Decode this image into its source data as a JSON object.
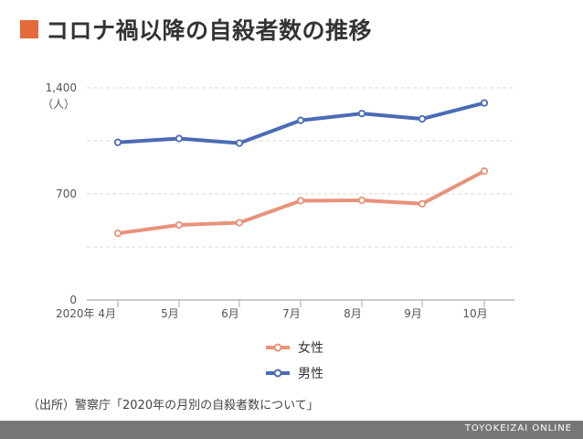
{
  "title": "コロナ禍以降の自殺者数の推移",
  "source": "（出所）警察庁「2020年の月別の自殺者数について」",
  "footer": "TOYOKEIZAI ONLINE",
  "colors": {
    "accent": "#e36a3c",
    "female": "#e8927a",
    "male": "#4a6bb5"
  },
  "chart_data": {
    "type": "line",
    "categories": [
      "2020年 4月",
      "5月",
      "6月",
      "7月",
      "8月",
      "9月",
      "10月"
    ],
    "y_tick_labels": [
      "1,400",
      "700",
      "0"
    ],
    "y_unit": "（人）",
    "ylim": [
      0,
      1400
    ],
    "y_ticks": [
      0,
      700,
      1400
    ],
    "grid": true,
    "legend_position": "bottom",
    "series": [
      {
        "name": "女性",
        "color": "#e8927a",
        "values": [
          440,
          495,
          510,
          655,
          658,
          635,
          850
        ]
      },
      {
        "name": "男性",
        "color": "#4a6bb5",
        "values": [
          1040,
          1065,
          1035,
          1185,
          1230,
          1195,
          1300
        ]
      }
    ]
  }
}
